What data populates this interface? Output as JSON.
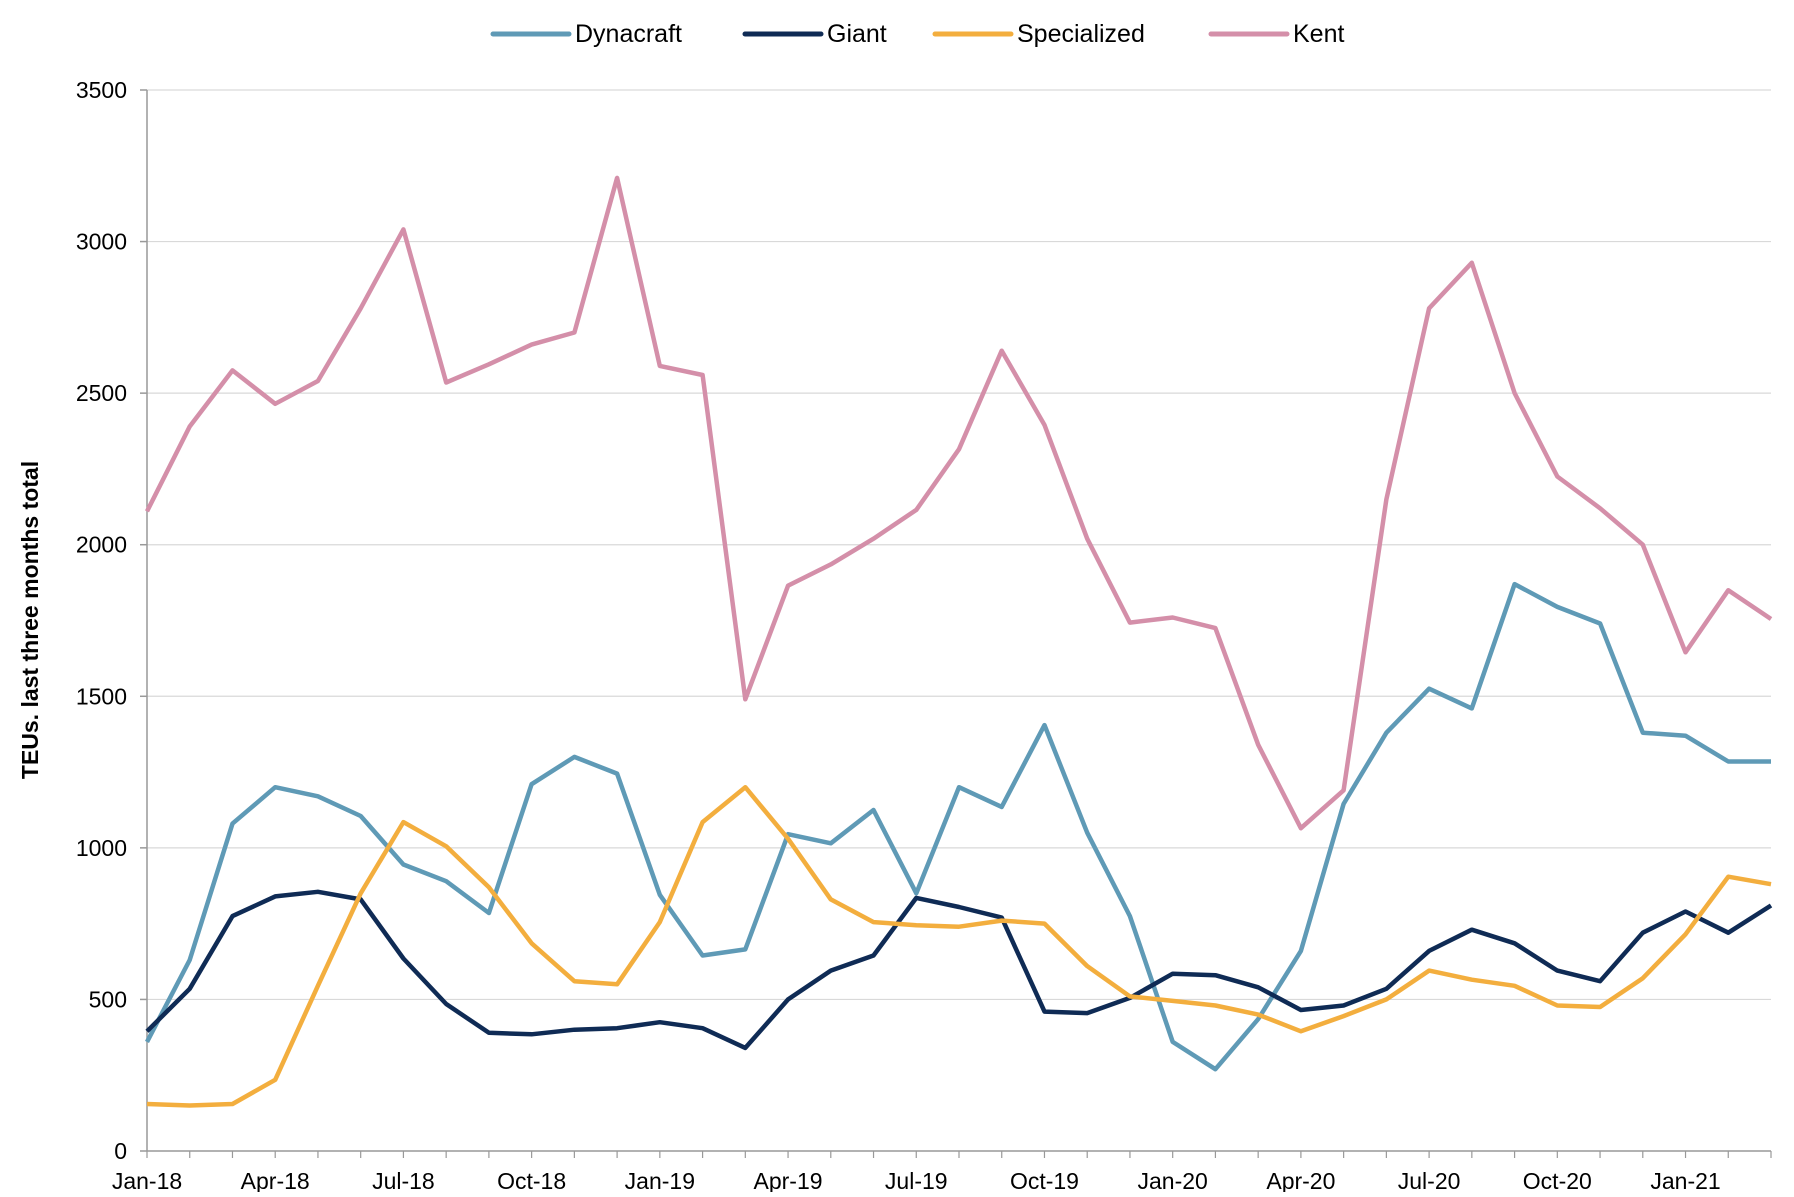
{
  "chart_data": {
    "type": "line",
    "title": "",
    "xlabel": "",
    "ylabel": "TEUs. last three months total",
    "ylim": [
      0,
      3500
    ],
    "yticks": [
      0,
      500,
      1000,
      1500,
      2000,
      2500,
      3000,
      3500
    ],
    "grid": true,
    "legend_placement": "top-center",
    "x": [
      "Jan-18",
      "Feb-18",
      "Mar-18",
      "Apr-18",
      "May-18",
      "Jun-18",
      "Jul-18",
      "Aug-18",
      "Sep-18",
      "Oct-18",
      "Nov-18",
      "Dec-18",
      "Jan-19",
      "Feb-19",
      "Mar-19",
      "Apr-19",
      "May-19",
      "Jun-19",
      "Jul-19",
      "Aug-19",
      "Sep-19",
      "Oct-19",
      "Nov-19",
      "Dec-19",
      "Jan-20",
      "Feb-20",
      "Mar-20",
      "Apr-20",
      "May-20",
      "Jun-20",
      "Jul-20",
      "Aug-20",
      "Sep-20",
      "Oct-20",
      "Nov-20",
      "Dec-20",
      "Jan-21",
      "Feb-21",
      "Mar-21"
    ],
    "xtick_labels": [
      "Jan-18",
      "Apr-18",
      "Jul-18",
      "Oct-18",
      "Jan-19",
      "Apr-19",
      "Jul-19",
      "Oct-19",
      "Jan-20",
      "Apr-20",
      "Jul-20",
      "Oct-20",
      "Jan-21"
    ],
    "series": [
      {
        "name": "Dynacraft",
        "color": "#5F9AB6",
        "values": [
          360,
          630,
          1080,
          1200,
          1170,
          1105,
          945,
          890,
          785,
          1210,
          1300,
          1245,
          845,
          645,
          665,
          1045,
          1015,
          1125,
          850,
          1200,
          1135,
          1405,
          1050,
          775,
          360,
          270,
          435,
          660,
          1145,
          1380,
          1525,
          1460,
          1870,
          1795,
          1740,
          1380,
          1370,
          1285,
          1285
        ]
      },
      {
        "name": "Giant",
        "color": "#0F2B55",
        "values": [
          395,
          535,
          775,
          840,
          855,
          830,
          635,
          485,
          390,
          385,
          400,
          405,
          425,
          405,
          340,
          500,
          595,
          645,
          835,
          805,
          770,
          460,
          455,
          505,
          585,
          580,
          540,
          465,
          480,
          535,
          660,
          730,
          685,
          595,
          560,
          720,
          790,
          720,
          810
        ]
      },
      {
        "name": "Specialized",
        "color": "#F3AE3E",
        "values": [
          155,
          150,
          155,
          235,
          545,
          850,
          1085,
          1005,
          870,
          685,
          560,
          550,
          755,
          1085,
          1200,
          1030,
          830,
          755,
          745,
          740,
          760,
          750,
          610,
          510,
          495,
          480,
          450,
          395,
          445,
          500,
          595,
          565,
          545,
          480,
          475,
          570,
          715,
          905,
          880
        ]
      },
      {
        "name": "Kent",
        "color": "#D48FA9",
        "values": [
          2110,
          2390,
          2575,
          2465,
          2540,
          2780,
          3040,
          2535,
          2595,
          2660,
          2700,
          3210,
          2590,
          2560,
          1490,
          1865,
          1935,
          2020,
          2115,
          2315,
          2640,
          2395,
          2020,
          1743,
          1760,
          1725,
          1340,
          1065,
          1190,
          2150,
          2780,
          2930,
          2500,
          2225,
          2120,
          2000,
          1645,
          1850,
          1755
        ]
      }
    ]
  }
}
